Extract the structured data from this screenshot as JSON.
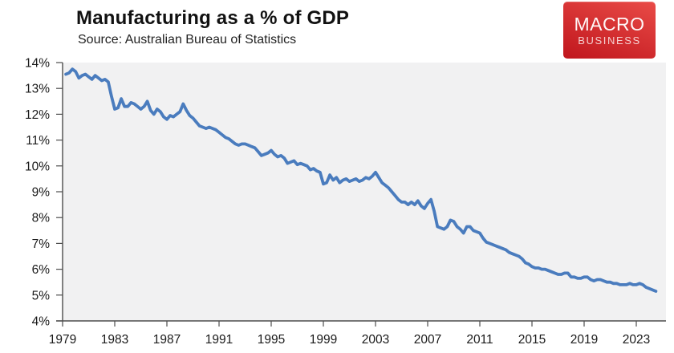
{
  "header": {
    "title": "Manufacturing as a % of GDP",
    "subtitle": "Source: Australian Bureau of Statistics"
  },
  "logo": {
    "line1": "MACRO",
    "line2": "BUSINESS",
    "bg_color_top": "#e94b47",
    "bg_color_bottom": "#c0161d"
  },
  "chart_data": {
    "type": "line",
    "title": "Manufacturing as a % of GDP",
    "source_note": "Source: Australian Bureau of Statistics",
    "xlabel": "",
    "ylabel": "",
    "ylim": [
      4,
      14
    ],
    "xlim": [
      1979,
      2025.3
    ],
    "grid": false,
    "legend": "none",
    "plot_bg": "#f1f1f2",
    "axis_color": "#4d4d4d",
    "label_color": "#1a1a1a",
    "y_ticks": [
      4,
      5,
      6,
      7,
      8,
      9,
      10,
      11,
      12,
      13,
      14
    ],
    "y_tick_suffix": "%",
    "x_ticks": [
      1979,
      1983,
      1987,
      1991,
      1995,
      1999,
      2003,
      2007,
      2011,
      2015,
      2019,
      2023
    ],
    "series": [
      {
        "name": "manufacturing-share-of-gdp",
        "color": "#4a7cbe",
        "x_start": 1979.25,
        "x_step": 0.25,
        "values": [
          13.55,
          13.6,
          13.75,
          13.65,
          13.4,
          13.5,
          13.55,
          13.45,
          13.35,
          13.5,
          13.4,
          13.3,
          13.35,
          13.25,
          12.7,
          12.2,
          12.25,
          12.6,
          12.3,
          12.3,
          12.45,
          12.4,
          12.3,
          12.2,
          12.3,
          12.5,
          12.15,
          12.0,
          12.2,
          12.1,
          11.9,
          11.8,
          11.95,
          11.9,
          12.0,
          12.1,
          12.4,
          12.15,
          11.95,
          11.85,
          11.7,
          11.55,
          11.5,
          11.45,
          11.5,
          11.45,
          11.4,
          11.3,
          11.2,
          11.1,
          11.05,
          10.95,
          10.85,
          10.8,
          10.85,
          10.85,
          10.8,
          10.75,
          10.7,
          10.55,
          10.4,
          10.45,
          10.5,
          10.6,
          10.45,
          10.35,
          10.4,
          10.3,
          10.1,
          10.15,
          10.2,
          10.05,
          10.1,
          10.05,
          10.0,
          9.85,
          9.9,
          9.8,
          9.75,
          9.3,
          9.35,
          9.65,
          9.45,
          9.55,
          9.35,
          9.45,
          9.5,
          9.4,
          9.45,
          9.5,
          9.4,
          9.45,
          9.55,
          9.5,
          9.6,
          9.75,
          9.55,
          9.35,
          9.25,
          9.15,
          9.0,
          8.85,
          8.7,
          8.6,
          8.6,
          8.5,
          8.6,
          8.5,
          8.65,
          8.45,
          8.35,
          8.55,
          8.7,
          8.25,
          7.65,
          7.6,
          7.55,
          7.65,
          7.9,
          7.85,
          7.65,
          7.55,
          7.4,
          7.65,
          7.65,
          7.5,
          7.45,
          7.4,
          7.2,
          7.05,
          7.0,
          6.95,
          6.9,
          6.85,
          6.8,
          6.75,
          6.65,
          6.6,
          6.55,
          6.5,
          6.4,
          6.25,
          6.2,
          6.1,
          6.05,
          6.05,
          6.0,
          6.0,
          5.95,
          5.9,
          5.85,
          5.8,
          5.8,
          5.85,
          5.85,
          5.7,
          5.7,
          5.65,
          5.65,
          5.7,
          5.7,
          5.6,
          5.55,
          5.6,
          5.6,
          5.55,
          5.5,
          5.5,
          5.45,
          5.45,
          5.4,
          5.4,
          5.4,
          5.45,
          5.4,
          5.4,
          5.45,
          5.4,
          5.3,
          5.25,
          5.2,
          5.15
        ]
      }
    ]
  }
}
